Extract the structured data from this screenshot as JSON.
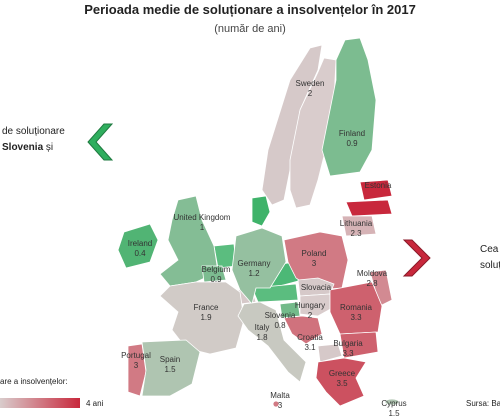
{
  "header": {
    "title": "Perioada medie de soluționare a insolvențelor în 2017",
    "subtitle": "(număr de ani)"
  },
  "left_note": {
    "line1": "de soluționare",
    "bold": "Slovenia",
    "rest": " și"
  },
  "right_note": {
    "line1": "Cea",
    "line2": "soluți"
  },
  "legend": {
    "title": "are a insolvențelor:",
    "max_label": "4 ani"
  },
  "source": "Sursa: Ba",
  "scale": {
    "domain": [
      0,
      2,
      4
    ],
    "colors": [
      "#2fae5e",
      "#d9cccc",
      "#c8283c"
    ]
  },
  "countries": [
    {
      "name": "Sweden",
      "value": 2
    },
    {
      "name": "Finland",
      "value": 0.9
    },
    {
      "name": "Estonia"
    },
    {
      "name": "Lithuania",
      "value": 2.3
    },
    {
      "name": "United Kingdom",
      "value": 1
    },
    {
      "name": "Ireland",
      "value": 0.4
    },
    {
      "name": "Belgium",
      "value": 0.9
    },
    {
      "name": "Germany",
      "value": 1.2
    },
    {
      "name": "Poland",
      "value": 3
    },
    {
      "name": "Slovacia"
    },
    {
      "name": "France",
      "value": 1.9
    },
    {
      "name": "Slovenia",
      "value": 0.8
    },
    {
      "name": "Hungary",
      "value": 2
    },
    {
      "name": "Moldova",
      "value": 2.8
    },
    {
      "name": "Romania",
      "value": 3.3
    },
    {
      "name": "Italy",
      "value": 1.8
    },
    {
      "name": "Croatia",
      "value": 3.1
    },
    {
      "name": "Bulgaria",
      "value": 3.3
    },
    {
      "name": "Portugal",
      "value": 3
    },
    {
      "name": "Spain",
      "value": 1.5
    },
    {
      "name": "Greece",
      "value": 3.5
    },
    {
      "name": "Malta",
      "value": 3
    },
    {
      "name": "Cyprus",
      "value": 1.5
    }
  ]
}
